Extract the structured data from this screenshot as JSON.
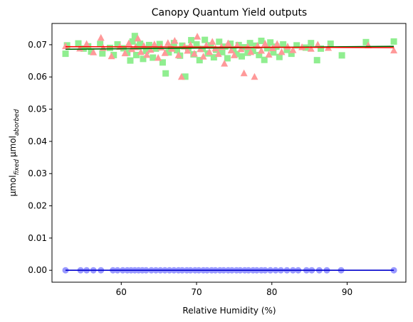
{
  "chart_data": {
    "type": "scatter",
    "title": "Canopy Quantum Yield outputs",
    "xlabel": "Relative Humidity (%)",
    "ylabel": {
      "unit": "µmol",
      "sub1": "fixed",
      "sub2": "aborbed"
    },
    "xlim": [
      50.8,
      97.8
    ],
    "ylim": [
      -0.0037,
      0.0766
    ],
    "x_ticks": [
      {
        "value": 60,
        "label": "60"
      },
      {
        "value": 70,
        "label": "70"
      },
      {
        "value": 80,
        "label": "80"
      },
      {
        "value": 90,
        "label": "90"
      }
    ],
    "y_ticks": [
      {
        "value": 0.0,
        "label": "0.00"
      },
      {
        "value": 0.01,
        "label": "0.01"
      },
      {
        "value": 0.02,
        "label": "0.02"
      },
      {
        "value": 0.03,
        "label": "0.03"
      },
      {
        "value": 0.04,
        "label": "0.04"
      },
      {
        "value": 0.05,
        "label": "0.05"
      },
      {
        "value": 0.06,
        "label": "0.06"
      },
      {
        "value": 0.07,
        "label": "0.07"
      }
    ],
    "grid": false,
    "colors": {
      "green_markers": "#90ee90",
      "red_markers": "#ff9999",
      "blue_markers": "#9999ff",
      "green_fit": "#006400",
      "red_fit": "#ff0000",
      "blue_fit": "#0000cc"
    },
    "series": [
      {
        "marker": "square",
        "x": [
          52.6,
          52.8,
          54.3,
          55.0,
          55.6,
          56.0,
          57.2,
          57.5,
          58.5,
          59.0,
          59.5,
          60.3,
          60.8,
          61.2,
          61.5,
          61.8,
          62.0,
          62.3,
          62.5,
          62.9,
          63.3,
          63.7,
          64.2,
          64.6,
          65.1,
          65.5,
          65.9,
          66.3,
          66.6,
          67.0,
          67.4,
          67.8,
          68.1,
          68.5,
          68.9,
          69.3,
          69.6,
          70.0,
          70.4,
          70.8,
          71.1,
          71.5,
          71.9,
          72.3,
          72.6,
          73.0,
          73.4,
          73.8,
          74.1,
          74.5,
          74.9,
          75.3,
          75.6,
          76.0,
          76.4,
          76.8,
          77.1,
          77.5,
          77.9,
          78.3,
          78.6,
          79.0,
          79.4,
          79.8,
          80.2,
          80.6,
          81.0,
          81.5,
          82.0,
          82.6,
          83.3,
          84.5,
          85.2,
          86.0,
          86.5,
          87.8,
          89.3,
          92.5,
          96.2
        ],
        "y": [
          0.0672,
          0.0698,
          0.0704,
          0.0688,
          0.0695,
          0.0679,
          0.0702,
          0.0673,
          0.069,
          0.0668,
          0.0701,
          0.0689,
          0.0675,
          0.0651,
          0.071,
          0.0727,
          0.0668,
          0.0694,
          0.0703,
          0.0656,
          0.0681,
          0.0699,
          0.066,
          0.0688,
          0.0702,
          0.0645,
          0.0611,
          0.0676,
          0.0692,
          0.0705,
          0.0683,
          0.0666,
          0.0697,
          0.0601,
          0.0689,
          0.0714,
          0.067,
          0.0701,
          0.0652,
          0.0687,
          0.0715,
          0.0673,
          0.0698,
          0.0661,
          0.0684,
          0.0709,
          0.0677,
          0.0694,
          0.0658,
          0.0703,
          0.0686,
          0.0671,
          0.0699,
          0.0664,
          0.0692,
          0.0675,
          0.0705,
          0.0681,
          0.0697,
          0.0668,
          0.0712,
          0.0653,
          0.0689,
          0.0707,
          0.0676,
          0.0694,
          0.0662,
          0.0701,
          0.0684,
          0.0672,
          0.0698,
          0.0691,
          0.0705,
          0.0652,
          0.0688,
          0.0703,
          0.0667,
          0.0708,
          0.071
        ]
      },
      {
        "marker": "triangle",
        "x": [
          52.6,
          54.5,
          55.4,
          56.3,
          57.3,
          57.6,
          58.7,
          59.8,
          60.5,
          61.0,
          61.4,
          61.9,
          62.2,
          62.6,
          63.0,
          63.4,
          63.9,
          64.4,
          64.9,
          65.3,
          65.8,
          66.2,
          66.7,
          67.1,
          67.6,
          68.0,
          68.4,
          68.8,
          69.2,
          69.7,
          70.1,
          70.5,
          70.9,
          71.3,
          71.7,
          72.1,
          72.5,
          72.9,
          73.3,
          73.7,
          74.2,
          74.6,
          75.0,
          75.4,
          75.9,
          76.3,
          76.8,
          77.2,
          77.7,
          78.1,
          78.6,
          79.1,
          79.6,
          80.1,
          80.7,
          81.3,
          82.1,
          82.8,
          84.0,
          85.2,
          86.1,
          87.5,
          92.8,
          96.2
        ],
        "y": [
          0.0695,
          0.0688,
          0.0702,
          0.0676,
          0.0721,
          0.069,
          0.0664,
          0.0693,
          0.0673,
          0.0704,
          0.0686,
          0.0692,
          0.0719,
          0.0677,
          0.0696,
          0.0668,
          0.0684,
          0.0701,
          0.0659,
          0.0691,
          0.0674,
          0.0705,
          0.0687,
          0.0712,
          0.0667,
          0.06,
          0.0694,
          0.0681,
          0.0699,
          0.0672,
          0.0725,
          0.0686,
          0.0663,
          0.0698,
          0.0677,
          0.0709,
          0.0688,
          0.0671,
          0.0693,
          0.0641,
          0.0704,
          0.0682,
          0.0667,
          0.0698,
          0.0686,
          0.0611,
          0.0693,
          0.0677,
          0.06,
          0.0696,
          0.0681,
          0.0703,
          0.0669,
          0.0689,
          0.0702,
          0.0677,
          0.0694,
          0.0683,
          0.0692,
          0.0687,
          0.07,
          0.069,
          0.0698,
          0.0682
        ]
      },
      {
        "marker": "circle",
        "x": [
          52.6,
          54.6,
          55.4,
          56.3,
          57.3,
          58.9,
          59.5,
          60.2,
          60.8,
          61.3,
          61.8,
          62.3,
          62.8,
          63.3,
          64.0,
          64.6,
          65.2,
          65.8,
          66.4,
          67.0,
          67.6,
          68.1,
          68.7,
          69.2,
          69.8,
          70.3,
          70.9,
          71.4,
          72.0,
          72.5,
          73.1,
          73.6,
          74.2,
          74.7,
          75.3,
          75.8,
          76.4,
          76.9,
          77.5,
          78.0,
          78.6,
          79.1,
          79.8,
          80.5,
          81.2,
          82.0,
          82.8,
          83.5,
          84.6,
          85.3,
          86.3,
          87.3,
          89.2,
          96.2
        ],
        "y": [
          0,
          0,
          0,
          0,
          0,
          0,
          0,
          0,
          0,
          0,
          0,
          0,
          0,
          0,
          0,
          0,
          0,
          0,
          0,
          0,
          0,
          0,
          0,
          0,
          0,
          0,
          0,
          0,
          0,
          0,
          0,
          0,
          0,
          0,
          0,
          0,
          0,
          0,
          0,
          0,
          0,
          0,
          0,
          0,
          0,
          0,
          0,
          0,
          0,
          0,
          0,
          0,
          0,
          0
        ]
      }
    ],
    "fit_lines": [
      {
        "color_key": "green_fit",
        "x": [
          52.6,
          96.2
        ],
        "y": [
          0.0686,
          0.0695
        ]
      },
      {
        "color_key": "red_fit",
        "x": [
          52.6,
          96.2
        ],
        "y": [
          0.0694,
          0.0691
        ]
      },
      {
        "color_key": "blue_fit",
        "x": [
          52.6,
          96.2
        ],
        "y": [
          0.0,
          0.0
        ]
      }
    ]
  }
}
